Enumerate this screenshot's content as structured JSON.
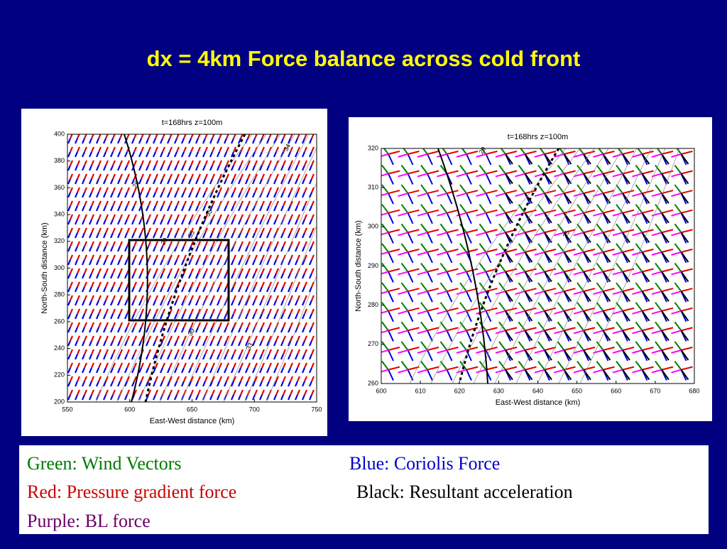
{
  "title": "dx = 4km  Force balance across cold front",
  "chart_data": [
    {
      "type": "vector-field",
      "title": "t=168hrs z=100m",
      "xlabel": "East-West distance (km)",
      "ylabel": "North-South distance (km)",
      "xlim": [
        550,
        750
      ],
      "ylim": [
        200,
        400
      ],
      "xticks": [
        550,
        600,
        650,
        700,
        750
      ],
      "yticks": [
        200,
        220,
        240,
        260,
        280,
        300,
        320,
        340,
        360,
        380,
        400
      ],
      "annotations": [
        "29",
        "29",
        "30",
        "35",
        "35",
        "33",
        "34"
      ]
    },
    {
      "type": "vector-field",
      "title": "t=168hrs z=100m",
      "xlabel": "East-West distance (km)",
      "ylabel": "North-South distance (km)",
      "xlim": [
        600,
        680
      ],
      "ylim": [
        260,
        320
      ],
      "xticks": [
        600,
        610,
        620,
        630,
        640,
        650,
        660,
        670,
        680
      ],
      "yticks": [
        260,
        270,
        280,
        290,
        300,
        310,
        320
      ],
      "annotations": [
        "29",
        "35"
      ]
    }
  ],
  "legend": [
    {
      "text": "Green: Wind Vectors",
      "color": "#007a00"
    },
    {
      "text": "Blue: Coriolis Force",
      "color": "#0000cc"
    },
    {
      "text": "Red: Pressure gradient force",
      "color": "#cc0000"
    },
    {
      "text": "Black: Resultant acceleration",
      "color": "#000000"
    },
    {
      "text": "Purple: BL force",
      "color": "#660066"
    }
  ]
}
